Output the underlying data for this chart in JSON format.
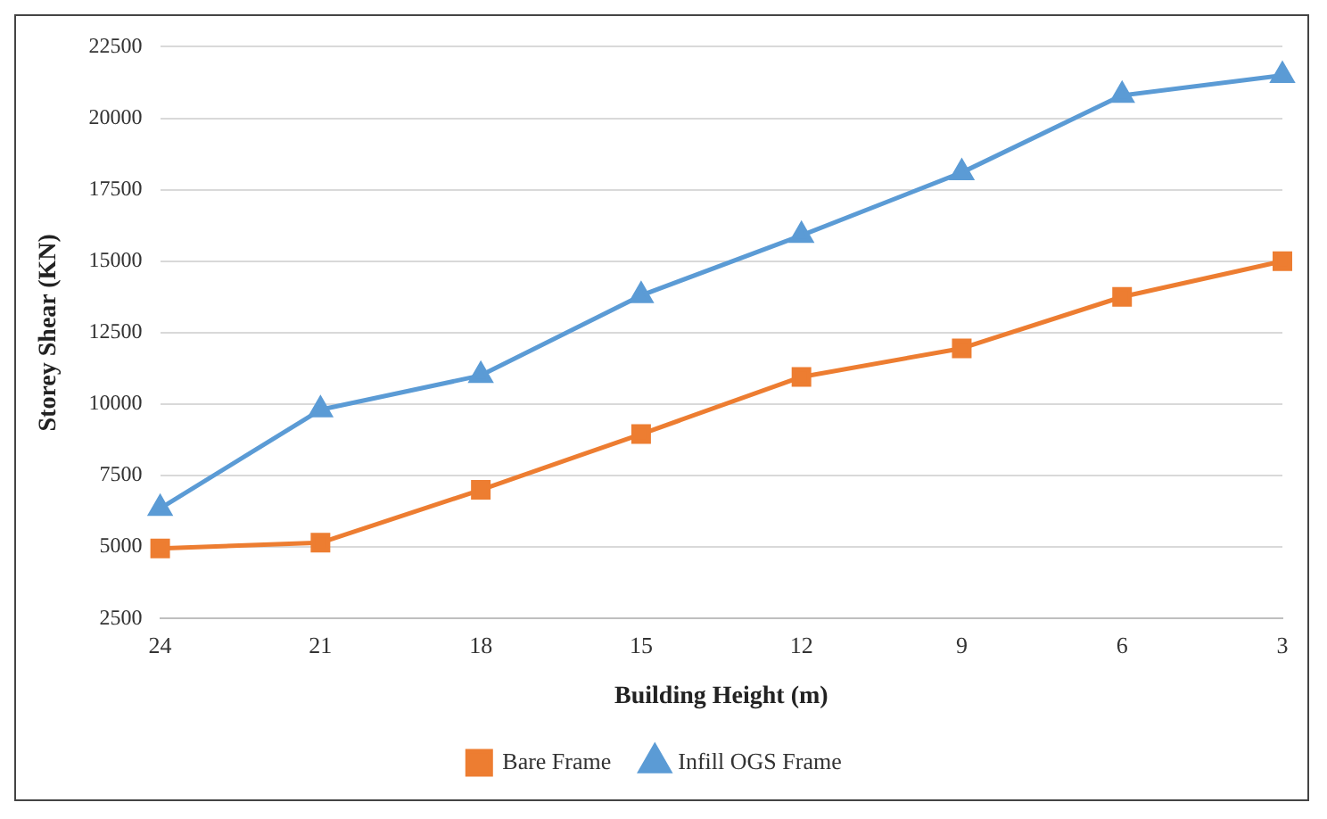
{
  "chart_data": {
    "type": "line",
    "xlabel": "Building Height (m)",
    "ylabel": "Storey Shear (KN)",
    "categories": [
      "24",
      "21",
      "18",
      "15",
      "12",
      "9",
      "6",
      "3"
    ],
    "series": [
      {
        "name": "Bare Frame",
        "color": "#ed7d31",
        "marker": "square",
        "values": [
          4950,
          5150,
          7000,
          8950,
          10950,
          11950,
          13750,
          15000
        ]
      },
      {
        "name": "Infill OGS Frame",
        "color": "#5b9bd5",
        "marker": "triangle",
        "values": [
          6350,
          9800,
          11000,
          13800,
          15900,
          18100,
          20800,
          21500
        ]
      }
    ],
    "ylim": [
      2500,
      22500
    ],
    "yticks": [
      2500,
      5000,
      7500,
      10000,
      12500,
      15000,
      17500,
      20000,
      22500
    ],
    "grid": "y",
    "legend": "bottom",
    "line_style": "solid"
  }
}
